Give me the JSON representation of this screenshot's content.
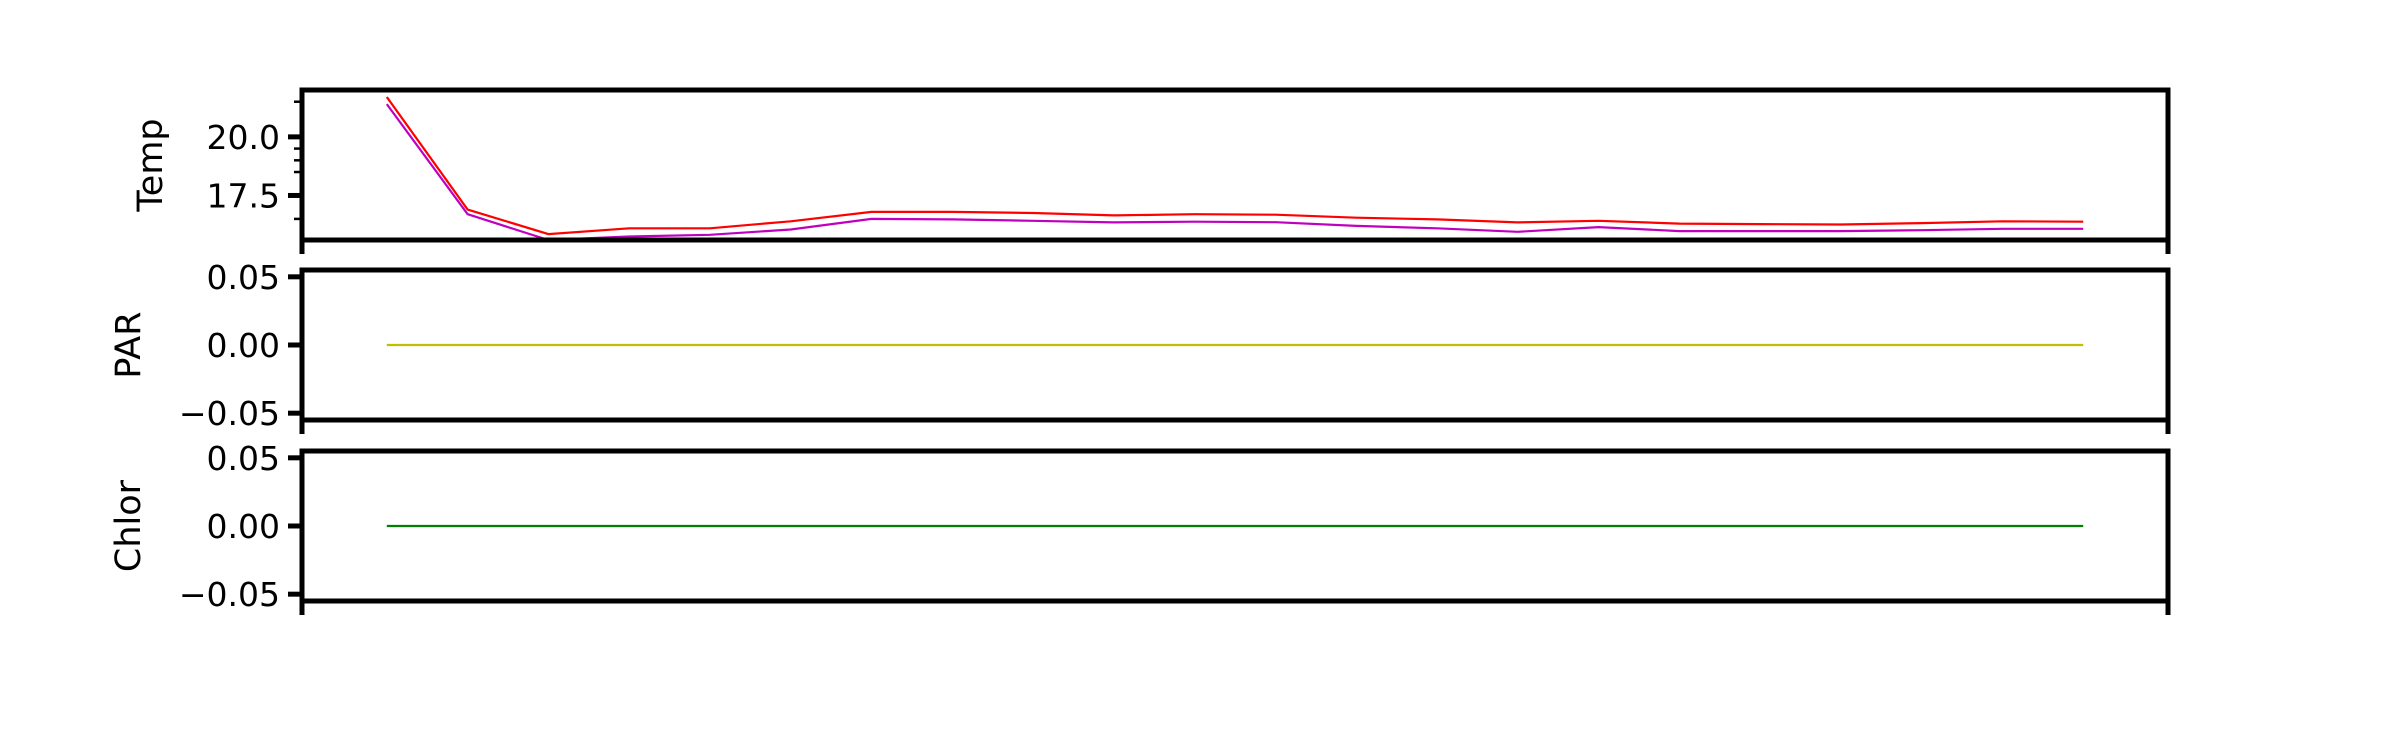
{
  "chart_data": [
    {
      "type": "line",
      "ylabel": "Temp",
      "x": [
        0,
        1,
        2,
        3,
        4,
        5,
        6,
        7,
        8,
        9,
        10,
        11,
        12,
        13,
        14,
        15,
        16,
        17,
        18,
        19,
        20,
        21
      ],
      "yticks": [
        "20.0",
        "17.5"
      ],
      "ytick_values": [
        20.0,
        17.5
      ],
      "ylim": [
        15.6,
        22.0
      ],
      "xlim": [
        -1.05,
        22.05
      ],
      "series": [
        {
          "color": "#ff0000",
          "values": [
            21.7,
            16.9,
            15.85,
            16.1,
            16.1,
            16.4,
            16.8,
            16.8,
            16.75,
            16.65,
            16.7,
            16.68,
            16.55,
            16.48,
            16.35,
            16.42,
            16.3,
            16.28,
            16.26,
            16.32,
            16.4,
            16.38
          ]
        },
        {
          "color": "#bf00bf",
          "values": [
            21.4,
            16.7,
            15.6,
            15.75,
            15.82,
            16.05,
            16.5,
            16.48,
            16.42,
            16.35,
            16.38,
            16.36,
            16.2,
            16.1,
            15.95,
            16.15,
            15.98,
            15.98,
            15.98,
            16.02,
            16.08,
            16.08
          ]
        }
      ]
    },
    {
      "type": "line",
      "ylabel": "PAR",
      "x": [
        0,
        1,
        2,
        3,
        4,
        5,
        6,
        7,
        8,
        9,
        10,
        11,
        12,
        13,
        14,
        15,
        16,
        17,
        18,
        19,
        20,
        21
      ],
      "yticks": [
        "0.05",
        "0.00",
        "−0.05"
      ],
      "ytick_values": [
        0.05,
        0.0,
        -0.05
      ],
      "ylim": [
        -0.055,
        0.055
      ],
      "xlim": [
        -1.05,
        22.05
      ],
      "series": [
        {
          "color": "#bfbf00",
          "values": [
            0,
            0,
            0,
            0,
            0,
            0,
            0,
            0,
            0,
            0,
            0,
            0,
            0,
            0,
            0,
            0,
            0,
            0,
            0,
            0,
            0,
            0
          ]
        }
      ]
    },
    {
      "type": "line",
      "ylabel": "Chlor",
      "x": [
        0,
        1,
        2,
        3,
        4,
        5,
        6,
        7,
        8,
        9,
        10,
        11,
        12,
        13,
        14,
        15,
        16,
        17,
        18,
        19,
        20,
        21
      ],
      "yticks": [
        "0.05",
        "0.00",
        "−0.05"
      ],
      "ytick_values": [
        0.05,
        0.0,
        -0.05
      ],
      "ylim": [
        -0.055,
        0.055
      ],
      "xlim": [
        -1.05,
        22.05
      ],
      "series": [
        {
          "color": "#008000",
          "values": [
            0,
            0,
            0,
            0,
            0,
            0,
            0,
            0,
            0,
            0,
            0,
            0,
            0,
            0,
            0,
            0,
            0,
            0,
            0,
            0,
            0,
            0
          ]
        }
      ]
    }
  ]
}
